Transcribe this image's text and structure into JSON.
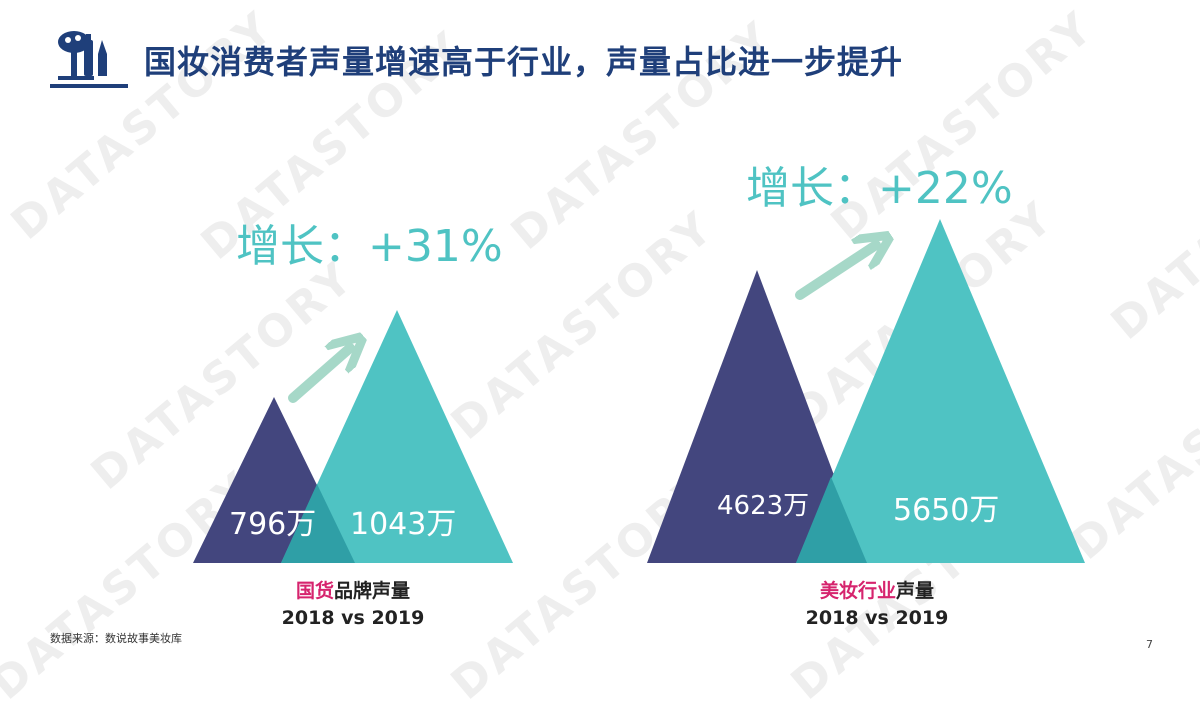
{
  "title": "国妆消费者声量增速高于行业，声量占比进一步提升",
  "watermark": "DATASTORY",
  "source": "数据来源：数说故事美妆库",
  "page_number": "7",
  "colors": {
    "title": "#1f3f7a",
    "dark": "#43467e",
    "teal": "#4fc3c3",
    "overlap": "#2f9fa6",
    "arrow": "#a6d8c8",
    "accent": "#d6246e"
  },
  "chart_data": [
    {
      "type": "area",
      "growth_label": "增长：+31%",
      "categories": [
        "2018",
        "2019"
      ],
      "values": [
        796,
        1043
      ],
      "unit": "万",
      "value_labels": [
        "796万",
        "1043万"
      ],
      "caption_accent": "国货",
      "caption_rest": "品牌声量",
      "caption_years": "2018 vs 2019"
    },
    {
      "type": "area",
      "growth_label": "增长：+22%",
      "categories": [
        "2018",
        "2019"
      ],
      "values": [
        4623,
        5650
      ],
      "unit": "万",
      "value_labels": [
        "4623万",
        "5650万"
      ],
      "caption_accent": "美妆行业",
      "caption_rest": "声量",
      "caption_years": "2018 vs 2019"
    }
  ]
}
